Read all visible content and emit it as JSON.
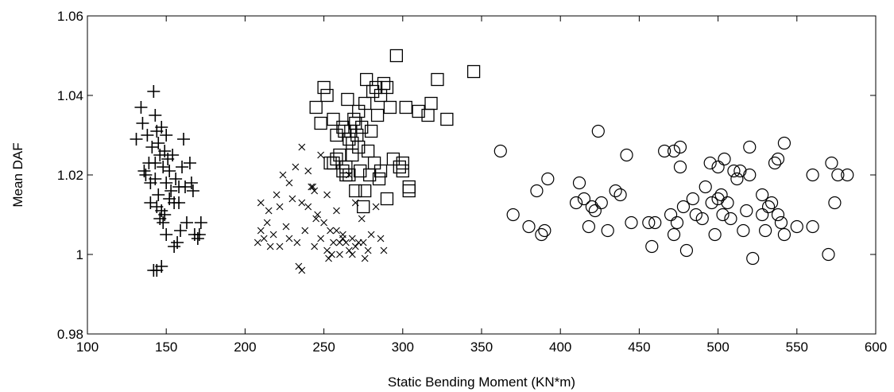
{
  "chart_data": {
    "type": "scatter",
    "title": "",
    "xlabel": "Static Bending Moment (KN*m)",
    "ylabel": "Mean DAF",
    "xlim": [
      100,
      600
    ],
    "ylim": [
      0.98,
      1.06
    ],
    "xticks": [
      100,
      150,
      200,
      250,
      300,
      350,
      400,
      450,
      500,
      550,
      600
    ],
    "yticks": [
      0.98,
      1,
      1.02,
      1.04,
      1.06
    ],
    "xtick_labels": [
      "100",
      "150",
      "200",
      "250",
      "300",
      "350",
      "400",
      "450",
      "500",
      "550",
      "600"
    ],
    "ytick_labels": [
      "0.98",
      "1",
      "1.02",
      "1.04",
      "1.06"
    ],
    "grid": false,
    "legend": "none",
    "series": [
      {
        "marker": "plus",
        "x": [
          131,
          134,
          135,
          137,
          138,
          140,
          141,
          142,
          143,
          143,
          144,
          144,
          145,
          145,
          146,
          146,
          147,
          147,
          148,
          148,
          149,
          149,
          150,
          150,
          151,
          152,
          153,
          154,
          155,
          156,
          157,
          158,
          159,
          160,
          161,
          162,
          163,
          165,
          166,
          167,
          168,
          170,
          171,
          172,
          142,
          144,
          147,
          140,
          150,
          152,
          139,
          143,
          136,
          155,
          158
        ],
        "y": [
          1.029,
          1.037,
          1.033,
          1.02,
          1.03,
          1.018,
          1.027,
          1.041,
          1.035,
          1.023,
          1.031,
          1.012,
          1.028,
          1.015,
          1.025,
          1.009,
          1.032,
          1.011,
          1.022,
          1.008,
          1.026,
          1.01,
          1.03,
          1.018,
          1.024,
          1.021,
          1.016,
          1.025,
          1.013,
          1.019,
          1.003,
          1.017,
          1.006,
          1.022,
          1.029,
          1.017,
          1.008,
          1.023,
          1.018,
          1.016,
          1.005,
          1.004,
          1.005,
          1.008,
          0.996,
          0.996,
          0.997,
          1.013,
          1.005,
          1.014,
          1.023,
          1.019,
          1.021,
          1.002,
          1.013
        ]
      },
      {
        "marker": "x",
        "x": [
          208,
          210,
          212,
          214,
          216,
          218,
          220,
          222,
          224,
          226,
          228,
          230,
          232,
          234,
          236,
          238,
          240,
          242,
          244,
          246,
          248,
          250,
          252,
          254,
          256,
          258,
          260,
          262,
          264,
          266,
          268,
          270,
          272,
          274,
          276,
          278,
          280,
          286,
          288,
          210,
          215,
          222,
          228,
          233,
          236,
          240,
          245,
          248,
          252,
          255,
          258,
          262,
          266,
          270,
          275,
          236,
          244,
          253,
          260,
          268,
          283,
          243
        ],
        "y": [
          1.003,
          1.006,
          1.004,
          1.008,
          1.002,
          1.005,
          1.015,
          1.012,
          1.02,
          1.007,
          1.004,
          1.014,
          1.022,
          0.997,
          1.027,
          1.006,
          1.012,
          1.017,
          1.002,
          1.01,
          1.025,
          1.008,
          1.001,
          1.006,
          1.003,
          1.011,
          1.0,
          1.005,
          1.003,
          1.02,
          1.0,
          1.013,
          1.003,
          1.009,
          0.999,
          1.001,
          1.005,
          1.004,
          1.001,
          1.013,
          1.011,
          1.002,
          1.018,
          1.003,
          0.996,
          1.021,
          1.009,
          1.004,
          1.015,
          1.0,
          1.006,
          1.004,
          1.001,
          1.002,
          1.003,
          1.013,
          1.016,
          0.999,
          1.003,
          1.004,
          1.012,
          1.017
        ]
      },
      {
        "marker": "square",
        "x": [
          245,
          248,
          250,
          252,
          254,
          256,
          258,
          260,
          262,
          264,
          265,
          266,
          267,
          268,
          269,
          270,
          271,
          272,
          273,
          274,
          275,
          276,
          277,
          278,
          279,
          280,
          281,
          282,
          283,
          284,
          285,
          286,
          288,
          290,
          292,
          294,
          296,
          298,
          300,
          302,
          304,
          310,
          316,
          318,
          322,
          328,
          345,
          262,
          266,
          268,
          270,
          272,
          264,
          258,
          256,
          263,
          300,
          304,
          276,
          286,
          290
        ],
        "y": [
          1.037,
          1.033,
          1.042,
          1.04,
          1.023,
          1.034,
          1.03,
          1.025,
          1.032,
          1.022,
          1.039,
          1.02,
          1.031,
          1.028,
          1.034,
          1.016,
          1.03,
          1.036,
          1.021,
          1.032,
          1.012,
          1.038,
          1.044,
          1.026,
          1.02,
          1.031,
          1.041,
          1.023,
          1.042,
          1.035,
          1.019,
          1.04,
          1.043,
          1.042,
          1.037,
          1.024,
          1.05,
          1.022,
          1.021,
          1.037,
          1.016,
          1.036,
          1.035,
          1.038,
          1.044,
          1.034,
          1.046,
          1.021,
          1.029,
          1.025,
          1.033,
          1.027,
          1.02,
          1.024,
          1.023,
          1.031,
          1.023,
          1.017,
          1.016,
          1.021,
          1.014
        ]
      },
      {
        "marker": "circle",
        "x": [
          362,
          370,
          380,
          385,
          388,
          390,
          392,
          410,
          412,
          415,
          418,
          420,
          422,
          424,
          426,
          430,
          435,
          438,
          442,
          445,
          456,
          458,
          460,
          466,
          470,
          472,
          472,
          474,
          476,
          476,
          478,
          480,
          484,
          486,
          490,
          492,
          495,
          496,
          498,
          500,
          500,
          502,
          503,
          504,
          506,
          508,
          510,
          512,
          514,
          516,
          518,
          520,
          520,
          522,
          528,
          528,
          530,
          532,
          534,
          536,
          538,
          538,
          540,
          542,
          542,
          550,
          560,
          560,
          570,
          572,
          574,
          576,
          582
        ],
        "y": [
          1.026,
          1.01,
          1.007,
          1.016,
          1.005,
          1.006,
          1.019,
          1.013,
          1.018,
          1.014,
          1.007,
          1.012,
          1.011,
          1.031,
          1.013,
          1.006,
          1.016,
          1.015,
          1.025,
          1.008,
          1.008,
          1.002,
          1.008,
          1.026,
          1.01,
          1.005,
          1.026,
          1.008,
          1.027,
          1.022,
          1.012,
          1.001,
          1.014,
          1.01,
          1.009,
          1.017,
          1.023,
          1.013,
          1.005,
          1.014,
          1.022,
          1.015,
          1.01,
          1.024,
          1.013,
          1.009,
          1.021,
          1.019,
          1.021,
          1.006,
          1.011,
          1.02,
          1.027,
          0.999,
          1.01,
          1.015,
          1.006,
          1.012,
          1.013,
          1.023,
          1.01,
          1.024,
          1.008,
          1.028,
          1.005,
          1.007,
          1.02,
          1.007,
          1.0,
          1.023,
          1.013,
          1.02,
          1.02
        ]
      }
    ]
  }
}
